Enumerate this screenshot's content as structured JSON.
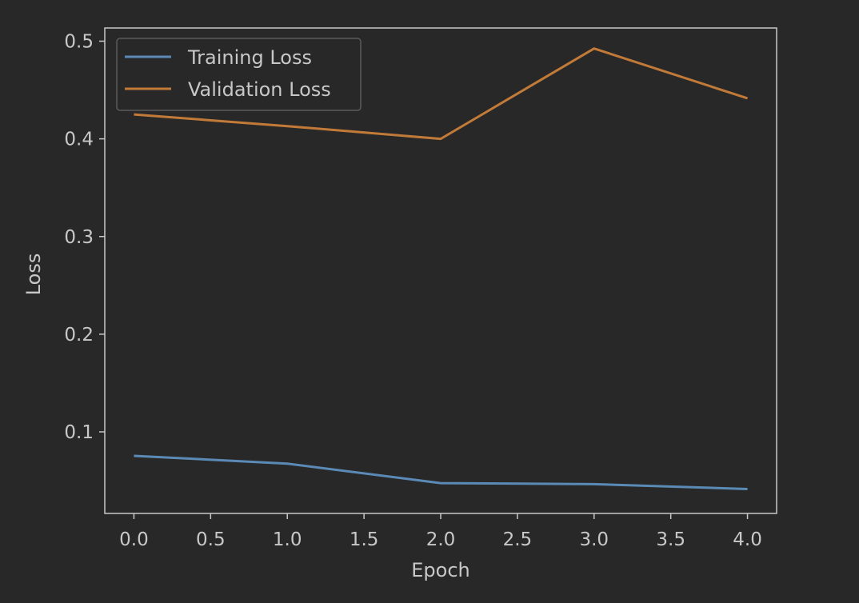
{
  "chart_data": {
    "type": "line",
    "title": "",
    "xlabel": "Epoch",
    "ylabel": "Loss",
    "x": [
      0,
      1,
      2,
      3,
      4
    ],
    "xlim": [
      -0.19,
      4.19
    ],
    "ylim": [
      0.0165,
      0.5135
    ],
    "xticks": [
      0.0,
      0.5,
      1.0,
      1.5,
      2.0,
      2.5,
      3.0,
      3.5,
      4.0
    ],
    "yticks": [
      0.1,
      0.2,
      0.3,
      0.4,
      0.5
    ],
    "xtick_labels": [
      "0.0",
      "0.5",
      "1.0",
      "1.5",
      "2.0",
      "2.5",
      "3.0",
      "3.5",
      "4.0"
    ],
    "ytick_labels": [
      "0.1",
      "0.2",
      "0.3",
      "0.4",
      "0.5"
    ],
    "grid": false,
    "legend_position": "top-left",
    "series": [
      {
        "name": "Training Loss",
        "values": [
          0.0755,
          0.0675,
          0.0475,
          0.0465,
          0.0415
        ],
        "color": "#5a8ab5"
      },
      {
        "name": "Validation Loss",
        "values": [
          0.425,
          0.413,
          0.4,
          0.4925,
          0.4415
        ],
        "color": "#c27a38"
      }
    ]
  },
  "colors": {
    "background": "#282828",
    "axes": "#c8c8c8",
    "text": "#c8c8c8",
    "legend_frame": "#5a5a5a"
  }
}
